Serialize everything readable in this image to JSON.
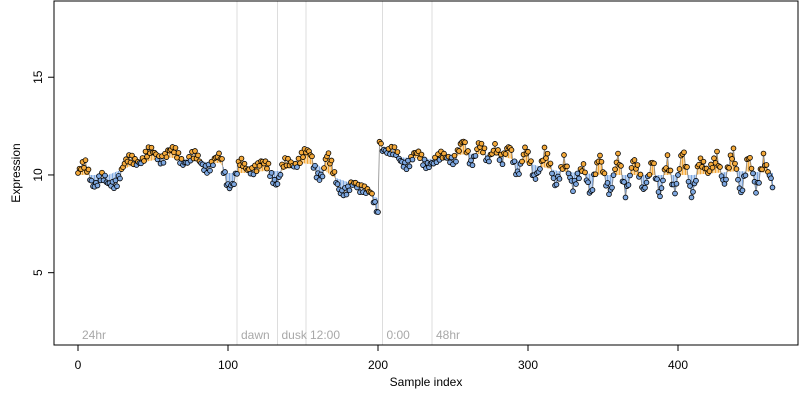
{
  "chart_data": {
    "type": "scatter",
    "title": "",
    "xlabel": "Sample index",
    "ylabel": "Expression",
    "xlim": [
      -16,
      480
    ],
    "ylim": [
      1.3,
      18.9
    ],
    "x_ticks": [
      0,
      100,
      200,
      300,
      400
    ],
    "x_tick_labels": [
      "0",
      "100",
      "200",
      "300",
      "400"
    ],
    "y_ticks": [
      5,
      10,
      15
    ],
    "y_tick_labels": [
      "5",
      "10",
      "15"
    ],
    "grid": false,
    "legend": "none",
    "colors": {
      "above_smooth": "#f4a93a",
      "below_smooth": "#7da7e0",
      "point_edge": "#000000",
      "event_line": "#dddddd",
      "event_text": "#a8a8a8"
    },
    "events": [
      {
        "label": "24hr",
        "x": 0
      },
      {
        "label": "dawn",
        "x": 106
      },
      {
        "label": "dusk",
        "x": 133
      },
      {
        "label": "12:00",
        "x": 152
      },
      {
        "label": "0:00",
        "x": 203
      },
      {
        "label": "48hr",
        "x": 236
      }
    ],
    "segment_breaks": [
      {
        "after_x": 200,
        "from": 8.1,
        "to": 11.7
      }
    ],
    "control_points": [
      [
        0,
        10.1
      ],
      [
        5,
        10.3
      ],
      [
        10,
        9.7
      ],
      [
        15,
        9.9
      ],
      [
        20,
        9.3
      ],
      [
        25,
        9.8
      ],
      [
        30,
        10.4
      ],
      [
        35,
        10.6
      ],
      [
        40,
        10.9
      ],
      [
        50,
        11.0
      ],
      [
        60,
        11.1
      ],
      [
        70,
        10.9
      ],
      [
        80,
        10.7
      ],
      [
        90,
        10.5
      ],
      [
        95,
        10.8
      ],
      [
        100,
        9.7
      ],
      [
        104,
        9.6
      ],
      [
        108,
        10.4
      ],
      [
        115,
        10.5
      ],
      [
        120,
        10.3
      ],
      [
        127,
        10.5
      ],
      [
        133,
        9.6
      ],
      [
        137,
        10.3
      ],
      [
        142,
        10.7
      ],
      [
        150,
        10.9
      ],
      [
        155,
        11.0
      ],
      [
        160,
        10.2
      ],
      [
        163,
        10.0
      ],
      [
        166,
        10.8
      ],
      [
        170,
        10.2
      ],
      [
        175,
        9.4
      ],
      [
        180,
        9.0
      ],
      [
        185,
        9.5
      ],
      [
        190,
        9.6
      ],
      [
        195,
        8.9
      ],
      [
        198,
        8.2
      ],
      [
        200,
        8.1
      ],
      [
        201,
        11.7
      ],
      [
        205,
        11.5
      ],
      [
        210,
        11.0
      ],
      [
        215,
        10.7
      ],
      [
        220,
        10.8
      ],
      [
        225,
        10.9
      ],
      [
        230,
        10.7
      ],
      [
        235,
        10.8
      ],
      [
        240,
        10.6
      ],
      [
        247,
        11.1
      ],
      [
        252,
        10.9
      ],
      [
        257,
        11.5
      ],
      [
        262,
        10.8
      ],
      [
        267,
        11.6
      ],
      [
        273,
        10.5
      ],
      [
        278,
        11.8
      ],
      [
        283,
        10.6
      ],
      [
        288,
        11.3
      ],
      [
        293,
        10.3
      ],
      [
        298,
        11.2
      ],
      [
        304,
        9.8
      ],
      [
        311,
        11.3
      ],
      [
        318,
        9.3
      ],
      [
        324,
        11.1
      ],
      [
        330,
        9.0
      ],
      [
        337,
        10.8
      ],
      [
        342,
        8.9
      ],
      [
        348,
        10.9
      ],
      [
        355,
        9.2
      ],
      [
        360,
        10.7
      ],
      [
        365,
        9.2
      ],
      [
        370,
        10.9
      ],
      [
        377,
        9.0
      ],
      [
        383,
        11.1
      ],
      [
        388,
        8.6
      ],
      [
        393,
        10.8
      ],
      [
        398,
        9.4
      ],
      [
        403,
        11.0
      ],
      [
        409,
        9.0
      ],
      [
        414,
        10.9
      ],
      [
        420,
        9.8
      ],
      [
        426,
        11.3
      ],
      [
        431,
        9.4
      ],
      [
        437,
        11.1
      ],
      [
        442,
        9.3
      ],
      [
        447,
        10.8
      ],
      [
        452,
        9.1
      ],
      [
        457,
        11.2
      ],
      [
        463,
        9.2
      ]
    ],
    "smooth_points": [
      [
        0,
        10.0
      ],
      [
        20,
        10.0
      ],
      [
        40,
        10.6
      ],
      [
        60,
        10.9
      ],
      [
        80,
        10.7
      ],
      [
        95,
        10.6
      ],
      [
        100,
        10.1
      ],
      [
        110,
        10.1
      ],
      [
        125,
        10.2
      ],
      [
        135,
        10.2
      ],
      [
        150,
        10.6
      ],
      [
        160,
        10.5
      ],
      [
        170,
        9.9
      ],
      [
        185,
        9.5
      ],
      [
        195,
        9.0
      ],
      [
        200,
        8.8
      ],
      [
        201,
        11.5
      ],
      [
        215,
        10.9
      ],
      [
        240,
        10.8
      ],
      [
        260,
        11.1
      ],
      [
        280,
        11.0
      ],
      [
        300,
        10.6
      ],
      [
        320,
        10.2
      ],
      [
        350,
        10.0
      ],
      [
        380,
        10.0
      ],
      [
        410,
        10.0
      ],
      [
        440,
        10.2
      ],
      [
        465,
        10.1
      ]
    ]
  }
}
